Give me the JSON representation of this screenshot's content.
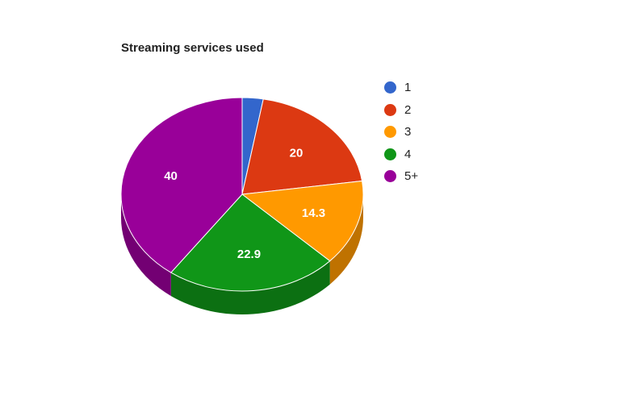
{
  "chart_data": {
    "type": "pie",
    "title": "Streaming services used",
    "categories": [
      "1",
      "2",
      "3",
      "4",
      "5+"
    ],
    "values": [
      2.8,
      20,
      14.3,
      22.9,
      40
    ],
    "data_labels": [
      "",
      "20",
      "14.3",
      "22.9",
      "40"
    ],
    "colors": [
      "#3366cc",
      "#dc3912",
      "#ff9900",
      "#109618",
      "#990099"
    ],
    "side_colors": [
      "#264d99",
      "#a52a0e",
      "#bf7200",
      "#0c7012",
      "#730073"
    ],
    "legend_position": "right",
    "three_d": true
  }
}
